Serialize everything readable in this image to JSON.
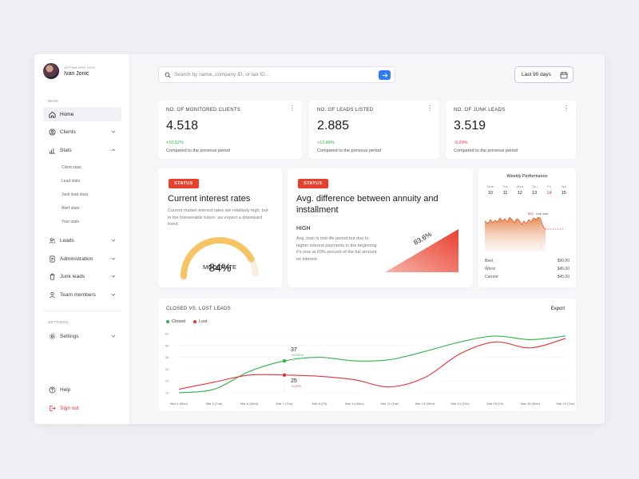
{
  "profile": {
    "company": "OPTIMA KPR DOO",
    "name": "Ivan Jonic"
  },
  "sidebar": {
    "main_label": "MAIN",
    "items": [
      {
        "label": "Home"
      },
      {
        "label": "Clients"
      },
      {
        "label": "Stats"
      },
      {
        "label": "Leads"
      },
      {
        "label": "Administration"
      },
      {
        "label": "Junk leads"
      },
      {
        "label": "Team members"
      }
    ],
    "stats_sub": [
      "Client stats",
      "Lead stats",
      "Junk lead stats",
      "Alert stats",
      "Your stats"
    ],
    "settings_label": "SETTINGS",
    "settings_item": "Settings",
    "help": "Help",
    "signout": "Sign out"
  },
  "search": {
    "placeholder": "Search by name, company ID, or tax ID..."
  },
  "date_range": {
    "label": "Last 90 days"
  },
  "kpis": [
    {
      "label": "NO. OF MONITORED CLIENTS",
      "value": "4.518",
      "change": "+10,52%",
      "note": "Compared to the previous period"
    },
    {
      "label": "NO. OF LEADS LISTED",
      "value": "2.885",
      "change": "+12,80%",
      "note": "Compared to the previous period"
    },
    {
      "label": "NO. OF JUNK LEADS",
      "value": "3.519",
      "change": "-9,20%",
      "note": "Compared to the previous period"
    }
  ],
  "interest_card": {
    "badge": "STATUS",
    "title": "Current interest rates",
    "desc": "Current market interest rates are relatively high, but in the foreseeable future, we expect a downward trend.",
    "gauge_label": "MODERATE",
    "gauge_value": "84%",
    "gauge_fraction": 0.84
  },
  "annuity_card": {
    "badge": "STATUS",
    "title": "Avg. difference between annuity and installment",
    "level": "HIGH",
    "desc": "Avg. loan is mid-life period but due to higher interest payments in the beginning it's now at 83% percent of the full amount on interest.",
    "ramp_value": "83,6%"
  },
  "weekly": {
    "title": "Weekly Performance",
    "days": [
      {
        "day": "Mon",
        "date": "10"
      },
      {
        "day": "Tue",
        "date": "11"
      },
      {
        "day": "Wed",
        "date": "12"
      },
      {
        "day": "Thu",
        "date": "13"
      },
      {
        "day": "Fri",
        "date": "14"
      },
      {
        "day": "Sat",
        "date": "15"
      }
    ],
    "selected_index": 4,
    "marker_label": "Live and",
    "marker_value": "$45",
    "stats": [
      {
        "label": "Best",
        "value": "$90.00"
      },
      {
        "label": "Worst",
        "value": "$45.00"
      },
      {
        "label": "Current",
        "value": "$45.00"
      }
    ]
  },
  "colors": {
    "accent": "#2f7bf5",
    "closed": "#2fb34a",
    "lost": "#e0343a",
    "status": "#e8402f",
    "gauge": "#f6c464"
  },
  "leads_chart": {
    "title": "CLOSED VS. LOST LEADS",
    "export": "Export",
    "chart_data": {
      "type": "line",
      "x": [
        "Mar 4 (Mon)",
        "Mar 5 (Tue)",
        "Mar 6 (Wed)",
        "Mar 7 (Thu)",
        "Mar 8 (Fri)",
        "Mar 11 (Mon)",
        "Mar 12 (Tue)",
        "Mar 13 (Wed)",
        "Mar 14 (Thu)",
        "Mar 15 (Fri)",
        "Mar 18 (Mon)",
        "Mar 19 (Tue)"
      ],
      "y_ticks": [
        "10",
        "20",
        "30",
        "40",
        "50",
        "60"
      ],
      "ylim": [
        10,
        60
      ],
      "series": [
        {
          "name": "Closed",
          "values": [
            10,
            13,
            28,
            37,
            40,
            37,
            38,
            45,
            53,
            58,
            55,
            58
          ]
        },
        {
          "name": "Lost",
          "values": [
            13,
            19,
            25,
            25,
            24,
            21,
            15,
            23,
            43,
            53,
            48,
            56
          ]
        }
      ],
      "annotations": [
        {
          "series": "Closed",
          "index": 3,
          "value": "37",
          "change": "+10,52%"
        },
        {
          "series": "Lost",
          "index": 3,
          "value": "25",
          "change": "-9,20%"
        }
      ],
      "legend": "top-left"
    }
  }
}
